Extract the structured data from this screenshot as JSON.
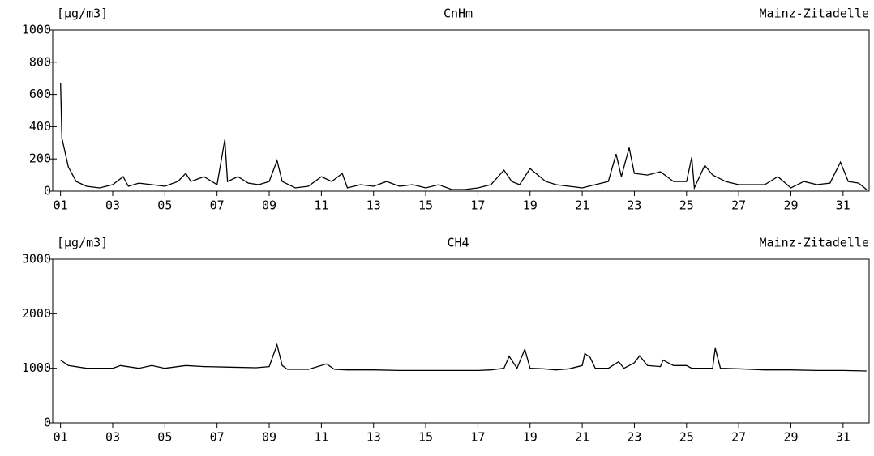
{
  "chart_data": [
    {
      "type": "line",
      "title": "CnHm",
      "ylabel": "[µg/m3]",
      "annotation": "Mainz-Zitadelle",
      "color": "#000000",
      "x": [
        1.0,
        1.05,
        1.3,
        1.6,
        2,
        2.5,
        3,
        3.4,
        3.6,
        4,
        4.5,
        5,
        5.5,
        5.8,
        6,
        6.5,
        7,
        7.3,
        7.4,
        7.8,
        8.2,
        8.6,
        9,
        9.3,
        9.5,
        10,
        10.5,
        11,
        11.4,
        11.8,
        12,
        12.5,
        13,
        13.5,
        14,
        14.5,
        15,
        15.5,
        16,
        16.5,
        17,
        17.5,
        18,
        18.3,
        18.6,
        19,
        19.3,
        19.6,
        20,
        20.5,
        21,
        21.5,
        22,
        22.3,
        22.5,
        22.8,
        23,
        23.5,
        24,
        24.5,
        25,
        25.2,
        25.3,
        25.7,
        26,
        26.5,
        27,
        27.5,
        28,
        28.5,
        29,
        29.5,
        30,
        30.5,
        30.9,
        31.2,
        31.6,
        31.9
      ],
      "values": [
        670,
        330,
        150,
        60,
        30,
        20,
        40,
        90,
        30,
        50,
        40,
        30,
        60,
        110,
        60,
        90,
        40,
        320,
        60,
        90,
        50,
        40,
        60,
        190,
        60,
        20,
        30,
        90,
        60,
        110,
        20,
        40,
        30,
        60,
        30,
        40,
        20,
        40,
        10,
        10,
        20,
        40,
        130,
        60,
        40,
        140,
        100,
        60,
        40,
        30,
        20,
        40,
        60,
        230,
        90,
        270,
        110,
        100,
        120,
        60,
        60,
        210,
        20,
        160,
        100,
        60,
        40,
        40,
        40,
        90,
        20,
        60,
        40,
        50,
        180,
        60,
        50,
        10
      ],
      "xlim": [
        0.7,
        32
      ],
      "ylim": [
        0,
        1000
      ],
      "xticks": [
        {
          "value": 1,
          "label": "01"
        },
        {
          "value": 3,
          "label": "03"
        },
        {
          "value": 5,
          "label": "05"
        },
        {
          "value": 7,
          "label": "07"
        },
        {
          "value": 9,
          "label": "09"
        },
        {
          "value": 11,
          "label": "11"
        },
        {
          "value": 13,
          "label": "13"
        },
        {
          "value": 15,
          "label": "15"
        },
        {
          "value": 17,
          "label": "17"
        },
        {
          "value": 19,
          "label": "19"
        },
        {
          "value": 21,
          "label": "21"
        },
        {
          "value": 23,
          "label": "23"
        },
        {
          "value": 25,
          "label": "25"
        },
        {
          "value": 27,
          "label": "27"
        },
        {
          "value": 29,
          "label": "29"
        },
        {
          "value": 31,
          "label": "31"
        }
      ],
      "yticks": [
        0,
        200,
        400,
        600,
        800,
        1000
      ]
    },
    {
      "type": "line",
      "title": "CH4",
      "ylabel": "[µg/m3]",
      "annotation": "Mainz-Zitadelle",
      "color": "#000000",
      "x": [
        1,
        1.3,
        2,
        3,
        3.3,
        4,
        4.5,
        5,
        5.8,
        6.5,
        7.5,
        8.5,
        9,
        9.3,
        9.5,
        9.7,
        10.5,
        11.2,
        11.5,
        12,
        13,
        14,
        15,
        16,
        17,
        17.5,
        18,
        18.2,
        18.5,
        18.8,
        19,
        19.5,
        20,
        20.5,
        21,
        21.1,
        21.3,
        21.5,
        22,
        22.4,
        22.6,
        23,
        23.2,
        23.5,
        24,
        24.1,
        24.5,
        25,
        25.2,
        26,
        26.1,
        26.3,
        27,
        28,
        29,
        30,
        31,
        31.9
      ],
      "values": [
        1150,
        1050,
        1000,
        1000,
        1050,
        1000,
        1050,
        1000,
        1050,
        1030,
        1020,
        1010,
        1030,
        1430,
        1050,
        980,
        980,
        1080,
        980,
        970,
        970,
        960,
        960,
        960,
        960,
        970,
        1000,
        1220,
        1000,
        1350,
        1000,
        990,
        970,
        990,
        1050,
        1270,
        1200,
        1000,
        1000,
        1120,
        1000,
        1100,
        1230,
        1050,
        1030,
        1150,
        1050,
        1050,
        1000,
        1000,
        1370,
        1000,
        990,
        970,
        970,
        960,
        960,
        950
      ],
      "xlim": [
        0.7,
        32
      ],
      "ylim": [
        0,
        3000
      ],
      "xticks": [
        {
          "value": 1,
          "label": "01"
        },
        {
          "value": 3,
          "label": "03"
        },
        {
          "value": 5,
          "label": "05"
        },
        {
          "value": 7,
          "label": "07"
        },
        {
          "value": 9,
          "label": "09"
        },
        {
          "value": 11,
          "label": "11"
        },
        {
          "value": 13,
          "label": "13"
        },
        {
          "value": 15,
          "label": "15"
        },
        {
          "value": 17,
          "label": "17"
        },
        {
          "value": 19,
          "label": "19"
        },
        {
          "value": 21,
          "label": "21"
        },
        {
          "value": 23,
          "label": "23"
        },
        {
          "value": 25,
          "label": "25"
        },
        {
          "value": 27,
          "label": "27"
        },
        {
          "value": 29,
          "label": "29"
        },
        {
          "value": 31,
          "label": "31"
        }
      ],
      "yticks": [
        0,
        1000,
        2000,
        3000
      ]
    }
  ]
}
